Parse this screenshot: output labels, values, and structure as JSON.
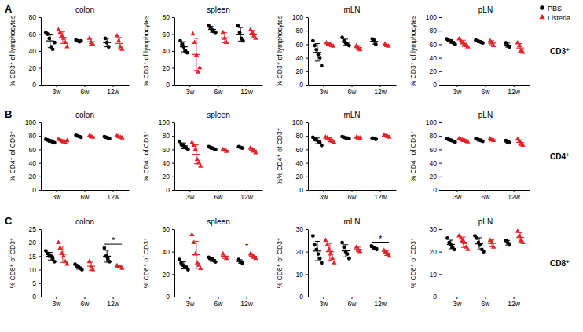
{
  "figure": {
    "panel_labels": [
      "A",
      "B",
      "C"
    ],
    "row_labels": [
      "CD3⁺",
      "CD4⁺",
      "CD8⁺"
    ]
  },
  "chart_data": [
    {
      "type": "scatter",
      "title": "colon",
      "y_label": "% CD3⁺ of lymphocytes",
      "categories": [
        "3w",
        "6w",
        "12w"
      ],
      "ylim": [
        0,
        80
      ],
      "yticks": [
        0,
        20,
        40,
        60,
        80
      ],
      "series": [
        {
          "name": "PBS",
          "color": "#000000",
          "marker": "circle",
          "values": [
            [
              62,
              60,
              55,
              45,
              42,
              50
            ],
            [
              53,
              52,
              51,
              52
            ],
            [
              55,
              50,
              45
            ]
          ],
          "mean": [
            52,
            52,
            50
          ],
          "sd": [
            8,
            1,
            5
          ]
        },
        {
          "name": "Listeria",
          "color": "#e3242b",
          "marker": "triangle",
          "values": [
            [
              65,
              62,
              58,
              55,
              50,
              45
            ],
            [
              55,
              50,
              48
            ],
            [
              58,
              52,
              45,
              42
            ]
          ],
          "mean": [
            56,
            51,
            49
          ],
          "sd": [
            7,
            4,
            7
          ]
        }
      ]
    },
    {
      "type": "scatter",
      "title": "spleen",
      "y_label": "% CD3⁺ of lymphocytes",
      "categories": [
        "3w",
        "6w",
        "12w"
      ],
      "ylim": [
        0,
        80
      ],
      "yticks": [
        0,
        20,
        40,
        60,
        80
      ],
      "series": [
        {
          "name": "PBS",
          "color": "#000000",
          "marker": "circle",
          "values": [
            [
              52,
              48,
              45,
              40,
              38
            ],
            [
              70,
              68,
              65,
              63,
              62
            ],
            [
              70,
              62,
              55,
              52
            ]
          ],
          "mean": [
            45,
            65.6,
            59.8
          ],
          "sd": [
            6,
            3.4,
            8
          ]
        },
        {
          "name": "Listeria",
          "color": "#e3242b",
          "marker": "triangle",
          "values": [
            [
              60,
              50,
              35,
              15,
              20
            ],
            [
              62,
              55,
              50
            ],
            [
              65,
              62,
              58,
              55
            ]
          ],
          "mean": [
            36,
            55.7,
            60
          ],
          "sd": [
            19,
            6,
            4.4
          ]
        }
      ]
    },
    {
      "type": "scatter",
      "title": "mLN",
      "y_label": "% CD3⁺ of lymphocytes",
      "categories": [
        "3w",
        "6w",
        "12w"
      ],
      "ylim": [
        0,
        100
      ],
      "yticks": [
        0,
        20,
        40,
        60,
        80,
        100
      ],
      "series": [
        {
          "name": "PBS",
          "color": "#000000",
          "marker": "circle",
          "values": [
            [
              65,
              58,
              52,
              45,
              40,
              28
            ],
            [
              70,
              65,
              62,
              60,
              58
            ],
            [
              68,
              65,
              60
            ]
          ],
          "mean": [
            48,
            63,
            64.3
          ],
          "sd": [
            13,
            4.6,
            4
          ]
        },
        {
          "name": "Listeria",
          "color": "#e3242b",
          "marker": "triangle",
          "values": [
            [
              62,
              60,
              60,
              58,
              57
            ],
            [
              58,
              55,
              52
            ],
            [
              60,
              58,
              57
            ]
          ],
          "mean": [
            59.4,
            55,
            58.3
          ],
          "sd": [
            2,
            3,
            1.5
          ]
        }
      ]
    },
    {
      "type": "scatter",
      "title": "pLN",
      "y_label": "% CD3⁺ of lymphocytes",
      "categories": [
        "3w",
        "6w",
        "12w"
      ],
      "ylim": [
        0,
        100
      ],
      "yticks": [
        0,
        20,
        40,
        60,
        80,
        100
      ],
      "legend": "right",
      "series": [
        {
          "name": "PBS",
          "color": "#000000",
          "marker": "circle",
          "values": [
            [
              68,
              66,
              65,
              64,
              62,
              60
            ],
            [
              66,
              65,
              64,
              63,
              62
            ],
            [
              62,
              58,
              56
            ]
          ],
          "mean": [
            64.2,
            64,
            58.7
          ],
          "sd": [
            2.8,
            1.6,
            3
          ]
        },
        {
          "name": "Listeria",
          "color": "#e3242b",
          "marker": "triangle",
          "values": [
            [
              68,
              65,
              62,
              60,
              58,
              56
            ],
            [
              65,
              62,
              58
            ],
            [
              62,
              58,
              50,
              48
            ]
          ],
          "mean": [
            61.5,
            61.7,
            54.5
          ],
          "sd": [
            4.5,
            3.5,
            6.6
          ]
        }
      ]
    },
    {
      "type": "scatter",
      "title": "colon",
      "y_label": "% CD4⁺ of CD3⁺",
      "categories": [
        "3w",
        "6w",
        "12w"
      ],
      "ylim": [
        0,
        100
      ],
      "yticks": [
        0,
        20,
        40,
        60,
        80,
        100
      ],
      "series": [
        {
          "name": "PBS",
          "color": "#000000",
          "marker": "circle",
          "values": [
            [
              75,
              74,
              73,
              72,
              71,
              70
            ],
            [
              81,
              80,
              79,
              78
            ],
            [
              79,
              78,
              77,
              76
            ]
          ],
          "mean": [
            72.5,
            79.5,
            77.5
          ],
          "sd": [
            1.9,
            1.3,
            1.3
          ]
        },
        {
          "name": "Listeria",
          "color": "#e3242b",
          "marker": "triangle",
          "values": [
            [
              75,
              74,
              72,
              71,
              70,
              73
            ],
            [
              80,
              79,
              78
            ],
            [
              80,
              79,
              78,
              77
            ]
          ],
          "mean": [
            72.5,
            79,
            78.5
          ],
          "sd": [
            1.9,
            1,
            1.3
          ]
        }
      ]
    },
    {
      "type": "scatter",
      "title": "spleen",
      "y_label": "% CD4⁺ of CD3⁺",
      "categories": [
        "3w",
        "6w",
        "12w"
      ],
      "ylim": [
        0,
        100
      ],
      "yticks": [
        0,
        20,
        40,
        60,
        80,
        100
      ],
      "series": [
        {
          "name": "PBS",
          "color": "#000000",
          "marker": "circle",
          "values": [
            [
              72,
              68,
              66,
              64,
              62,
              60
            ],
            [
              64,
              63,
              62,
              61,
              60
            ],
            [
              64,
              63,
              62
            ]
          ],
          "mean": [
            65.3,
            62,
            63
          ],
          "sd": [
            4.3,
            1.6,
            1
          ]
        },
        {
          "name": "Listeria",
          "color": "#e3242b",
          "marker": "triangle",
          "values": [
            [
              70,
              66,
              60,
              45,
              40,
              35
            ],
            [
              60,
              59,
              57
            ],
            [
              62,
              60,
              58,
              55
            ]
          ],
          "mean": [
            52.7,
            58.7,
            58.8
          ],
          "sd": [
            14,
            1.5,
            3
          ]
        }
      ]
    },
    {
      "type": "scatter",
      "title": "mLN",
      "y_label": "%% CD4⁺ of CD3⁺",
      "categories": [
        "3w",
        "6w",
        "12w"
      ],
      "ylim": [
        0,
        100
      ],
      "yticks": [
        0,
        20,
        40,
        60,
        80,
        100
      ],
      "series": [
        {
          "name": "PBS",
          "color": "#000000",
          "marker": "circle",
          "values": [
            [
              78,
              76,
              74,
              72,
              70,
              66
            ],
            [
              79,
              78,
              77,
              77,
              76
            ],
            [
              77,
              76,
              75
            ]
          ],
          "mean": [
            72.7,
            77.4,
            76
          ],
          "sd": [
            4.3,
            1.1,
            1
          ]
        },
        {
          "name": "Listeria",
          "color": "#e3242b",
          "marker": "triangle",
          "values": [
            [
              78,
              77,
              75,
              73,
              72,
              70
            ],
            [
              78,
              77,
              77
            ],
            [
              81,
              80,
              79,
              78
            ]
          ],
          "mean": [
            74.2,
            77.3,
            79.5
          ],
          "sd": [
            3,
            0.6,
            1.3
          ]
        }
      ]
    },
    {
      "type": "scatter",
      "title": "pLN",
      "y_label": "% CD4⁺ of CD3⁺",
      "categories": [
        "3w",
        "6w",
        "12w"
      ],
      "ylim": [
        0,
        100
      ],
      "yticks": [
        0,
        20,
        40,
        60,
        80,
        100
      ],
      "series": [
        {
          "name": "PBS",
          "color": "#000000",
          "marker": "circle",
          "values": [
            [
              76,
              75,
              74,
              73,
              72,
              71
            ],
            [
              76,
              75,
              74,
              73,
              72
            ],
            [
              73,
              71,
              70
            ]
          ],
          "mean": [
            73.5,
            74,
            71.3
          ],
          "sd": [
            1.9,
            1.6,
            1.5
          ]
        },
        {
          "name": "Listeria",
          "color": "#e3242b",
          "marker": "triangle",
          "values": [
            [
              76,
              75,
              74,
              73,
              72,
              71
            ],
            [
              76,
              74,
              73
            ],
            [
              75,
              72,
              68,
              66
            ]
          ],
          "mean": [
            73.5,
            74.3,
            70.3
          ],
          "sd": [
            1.9,
            1.5,
            4
          ]
        }
      ]
    },
    {
      "type": "scatter",
      "title": "colon",
      "y_label": "% CD8⁺ of CD3⁺",
      "categories": [
        "3w",
        "6w",
        "12w"
      ],
      "ylim": [
        0,
        25
      ],
      "yticks": [
        0,
        5,
        10,
        15,
        20,
        25
      ],
      "annotations": [
        {
          "text": "*",
          "x": "12w"
        }
      ],
      "series": [
        {
          "name": "PBS",
          "color": "#000000",
          "marker": "circle",
          "values": [
            [
              17,
              16,
              15,
              15,
              14,
              13
            ],
            [
              12,
              11.5,
              11,
              10.5,
              10
            ],
            [
              18,
              15,
              14,
              13
            ]
          ],
          "mean": [
            15,
            11,
            15
          ],
          "sd": [
            1.4,
            0.8,
            2.2
          ]
        },
        {
          "name": "Listeria",
          "color": "#e3242b",
          "marker": "triangle",
          "values": [
            [
              20,
              18,
              16,
              15,
              13,
              12
            ],
            [
              13,
              11,
              10
            ],
            [
              11.5,
              11,
              11,
              10.5
            ]
          ],
          "mean": [
            15.7,
            11.3,
            11
          ],
          "sd": [
            3,
            1.5,
            0.4
          ]
        }
      ]
    },
    {
      "type": "scatter",
      "title": "spleen",
      "y_label": "% CD8⁺ of CD3⁺",
      "categories": [
        "3w",
        "6w",
        "12w"
      ],
      "ylim": [
        0,
        60
      ],
      "yticks": [
        0,
        20,
        40,
        60
      ],
      "annotations": [
        {
          "text": "*",
          "x": "12w"
        }
      ],
      "series": [
        {
          "name": "PBS",
          "color": "#000000",
          "marker": "circle",
          "values": [
            [
              33,
              30,
              28,
              27,
              26,
              24
            ],
            [
              35,
              34,
              33,
              32,
              31
            ],
            [
              33,
              31,
              30
            ]
          ],
          "mean": [
            28,
            33,
            31.3
          ],
          "sd": [
            3.2,
            1.6,
            1.5
          ]
        },
        {
          "name": "Listeria",
          "color": "#e3242b",
          "marker": "triangle",
          "values": [
            [
              55,
              48,
              38,
              30,
              28,
              25
            ],
            [
              38,
              36,
              34
            ],
            [
              38,
              37,
              35,
              34
            ]
          ],
          "mean": [
            37.3,
            36,
            36
          ],
          "sd": [
            12,
            2,
            1.8
          ]
        }
      ]
    },
    {
      "type": "scatter",
      "title": "mLN",
      "y_label": "% CD8⁺ of CD3⁺",
      "categories": [
        "3w",
        "6w",
        "12w"
      ],
      "ylim": [
        0,
        30
      ],
      "yticks": [
        0,
        10,
        20,
        30
      ],
      "annotations": [
        {
          "text": "*",
          "x": "12w"
        }
      ],
      "series": [
        {
          "name": "PBS",
          "color": "#000000",
          "marker": "circle",
          "values": [
            [
              27,
              23,
              21,
              19,
              17,
              15
            ],
            [
              24,
              22,
              20,
              19,
              17
            ],
            [
              22.5,
              22,
              21.5,
              21
            ]
          ],
          "mean": [
            20.3,
            20.4,
            21.8
          ],
          "sd": [
            4.3,
            2.7,
            0.6
          ]
        },
        {
          "name": "Listeria",
          "color": "#e3242b",
          "marker": "triangle",
          "values": [
            [
              25,
              23,
              21,
              19,
              17,
              15
            ],
            [
              22,
              21,
              20
            ],
            [
              20.5,
              20,
              19,
              18
            ]
          ],
          "mean": [
            20,
            21,
            19.4
          ],
          "sd": [
            3.7,
            1,
            1.1
          ]
        }
      ]
    },
    {
      "type": "scatter",
      "title": "pLN",
      "y_label": "% CD8⁺ of CD3⁺",
      "categories": [
        "3w",
        "6w",
        "12w"
      ],
      "ylim": [
        0,
        30
      ],
      "yticks": [
        0,
        10,
        20,
        30
      ],
      "series": [
        {
          "name": "PBS",
          "color": "#000000",
          "marker": "circle",
          "values": [
            [
              26,
              24,
              23,
              22,
              21
            ],
            [
              27,
              26,
              24,
              23,
              21,
              20
            ],
            [
              25,
              24,
              23
            ]
          ],
          "mean": [
            23.2,
            23.5,
            24
          ],
          "sd": [
            1.9,
            2.7,
            1
          ]
        },
        {
          "name": "Listeria",
          "color": "#e3242b",
          "marker": "triangle",
          "values": [
            [
              27,
              26,
              25,
              24,
              22,
              21
            ],
            [
              25,
              24,
              22
            ],
            [
              29,
              27,
              25,
              24
            ]
          ],
          "mean": [
            24.2,
            23.7,
            26.3
          ],
          "sd": [
            2.3,
            1.5,
            2.2
          ]
        }
      ]
    }
  ]
}
